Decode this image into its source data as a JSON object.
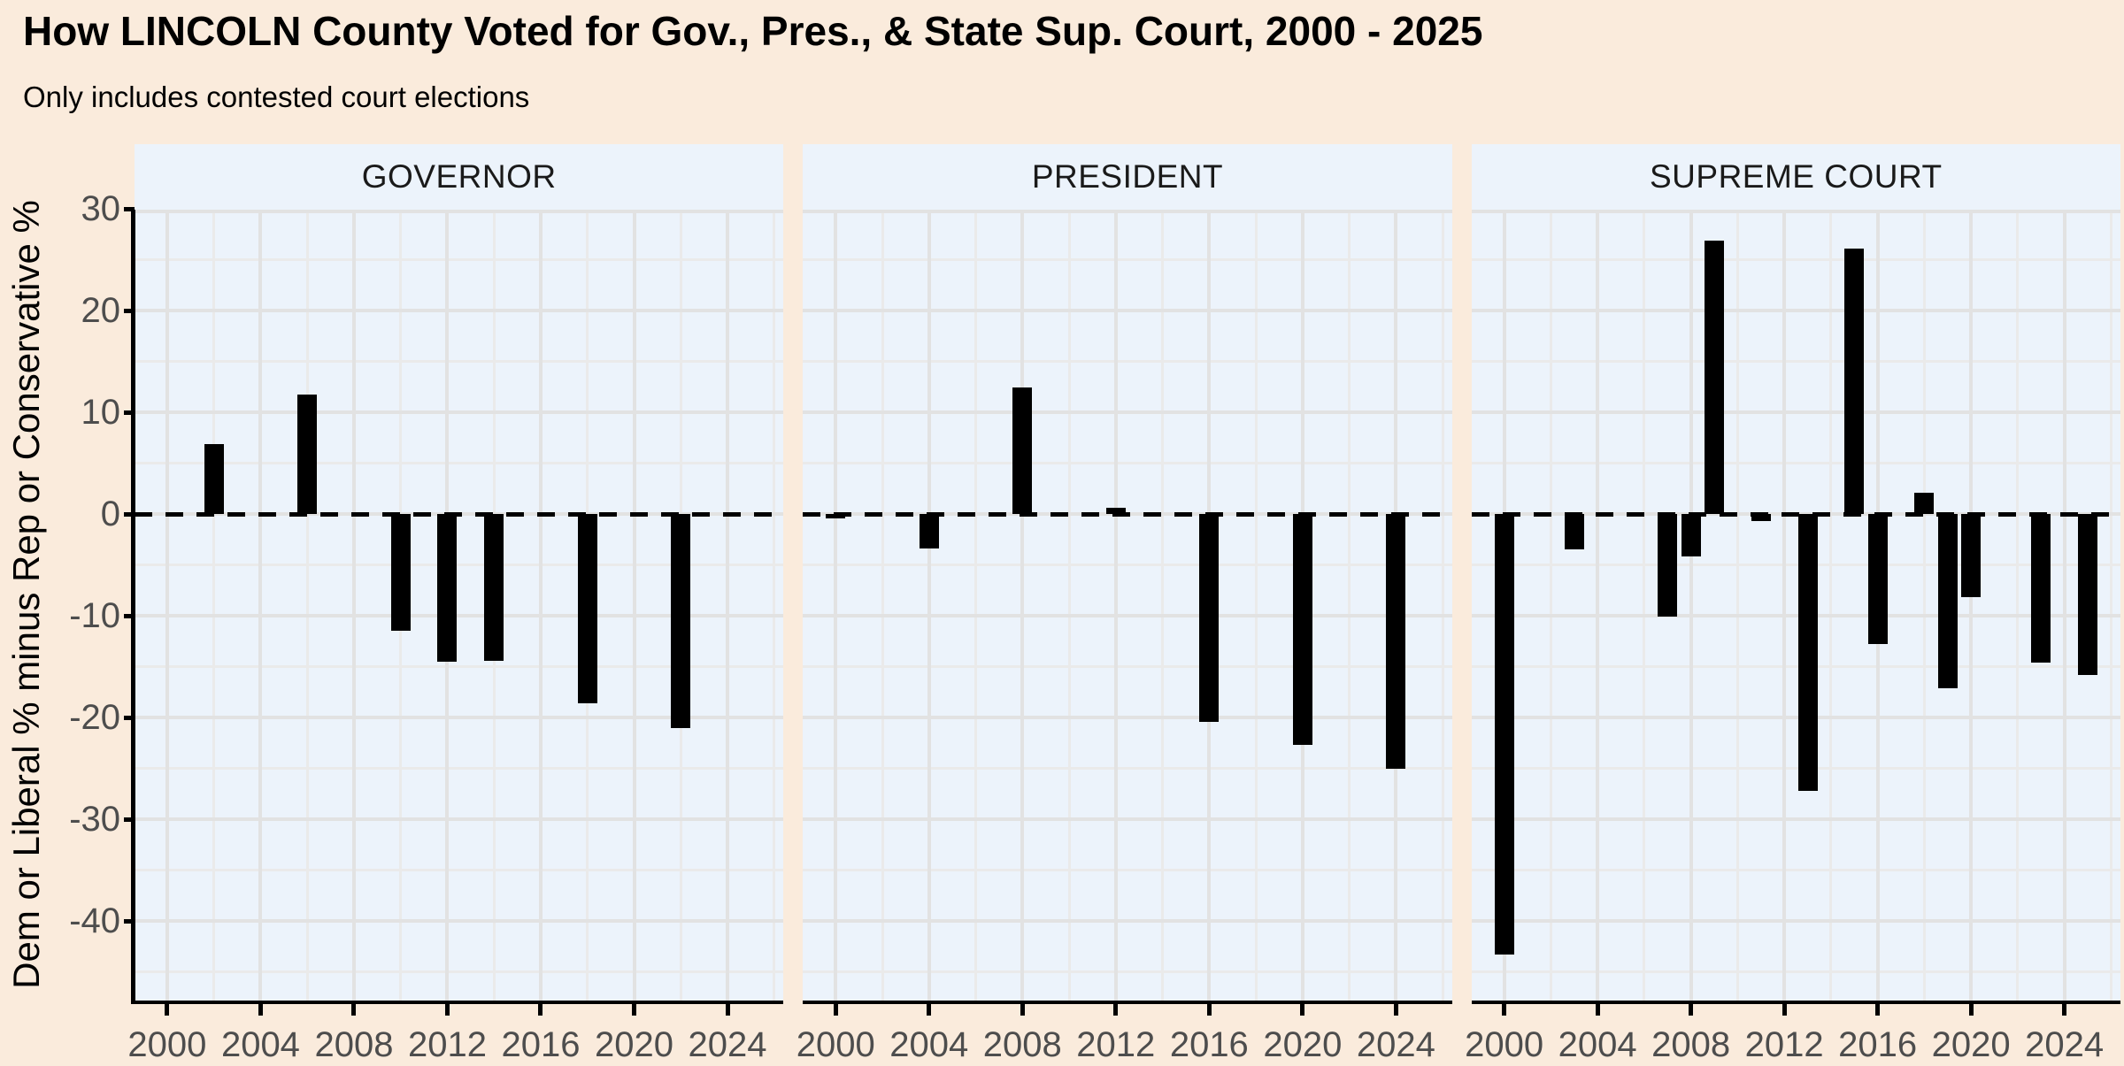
{
  "header": {
    "title": "How LINCOLN County Voted for Gov., Pres., & State Sup. Court, 2000 - 2025",
    "subtitle": "Only includes contested court elections"
  },
  "y_axis": {
    "label": "Dem or Liberal % minus Rep or Conservative %",
    "ticks": [
      30,
      20,
      10,
      0,
      -10,
      -20,
      -30,
      -40
    ],
    "minor_ticks": [
      25,
      15,
      5,
      -5,
      -15,
      -25,
      -35,
      -45
    ],
    "domain": [
      -47.8,
      30.1
    ]
  },
  "x_axis": {
    "ticks": [
      2000,
      2004,
      2008,
      2012,
      2016,
      2020,
      2024
    ],
    "minor_ticks": [
      2002,
      2006,
      2010,
      2014,
      2018,
      2022,
      2026
    ],
    "domain": [
      1998.6,
      2026.4
    ]
  },
  "zero_line": {
    "value": 0,
    "style": "dashed"
  },
  "colors": {
    "background": "#FAEBDC",
    "panel_background": "#ECF3FB",
    "grid_major": "#E2E2E2",
    "grid_minor": "#EAEAEA",
    "bar": "#000000",
    "axis_text": "#4D4D4D",
    "strip_text": "#1A1A1A",
    "title_text": "#000000",
    "axis_line": "#000000"
  },
  "chart_data": [
    {
      "type": "bar",
      "name": "GOVERNOR",
      "x": [
        2002,
        2006,
        2010,
        2012,
        2014,
        2018,
        2022
      ],
      "values": [
        6.9,
        11.7,
        -11.5,
        -14.5,
        -14.4,
        -18.6,
        -21.0
      ]
    },
    {
      "type": "bar",
      "name": "PRESIDENT",
      "x": [
        2000,
        2004,
        2008,
        2012,
        2016,
        2020,
        2024
      ],
      "values": [
        -0.4,
        -3.4,
        12.4,
        0.6,
        -20.4,
        -22.7,
        -25.0
      ]
    },
    {
      "type": "bar",
      "name": "SUPREME COURT",
      "x": [
        2000,
        2003,
        2007,
        2008,
        2009,
        2011,
        2013,
        2015,
        2016,
        2018,
        2019,
        2020,
        2023,
        2025
      ],
      "values": [
        -43.3,
        -3.5,
        -10.1,
        -4.2,
        26.9,
        -0.7,
        -27.2,
        26.1,
        -12.8,
        2.1,
        -17.1,
        -8.2,
        -14.6,
        -15.8
      ]
    }
  ]
}
